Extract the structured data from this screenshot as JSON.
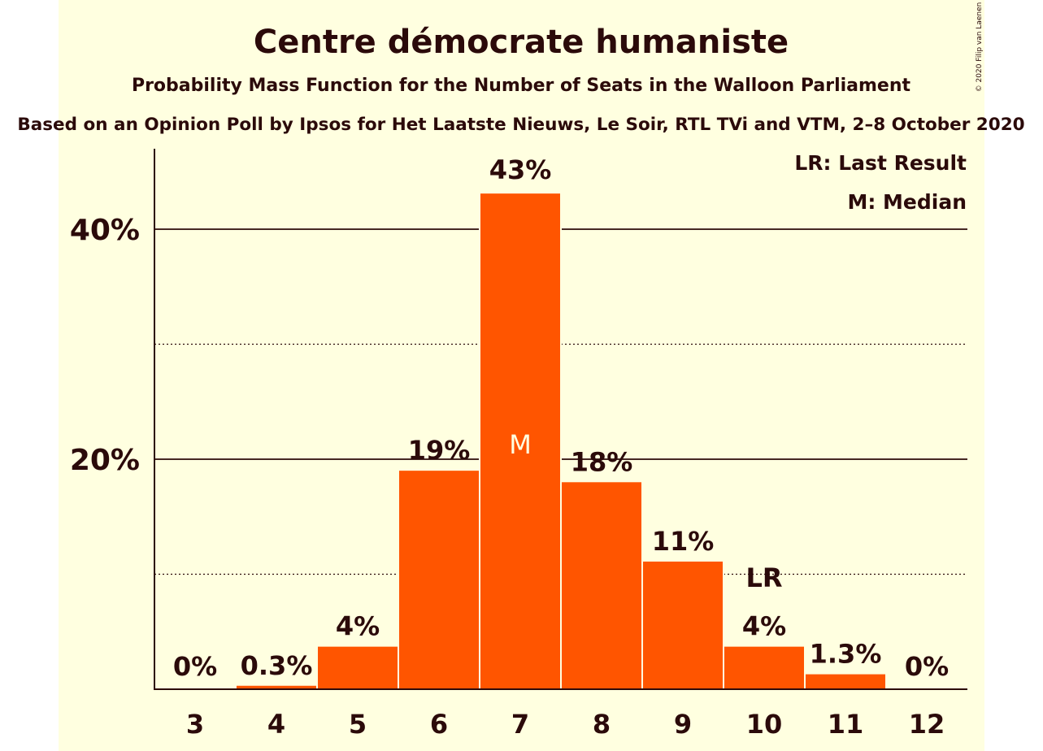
{
  "chart_data": {
    "type": "bar",
    "title": "Centre démocrate humaniste",
    "subtitle": "Probability Mass Function for the Number of Seats in the Walloon Parliament",
    "subtitle2": "Based on an Opinion Poll by Ipsos for Het Laatste Nieuws, Le Soir, RTL TVi and VTM, 2–8 October 2020",
    "copyright": "© 2020 Filip van Laenen",
    "categories": [
      "3",
      "4",
      "5",
      "6",
      "7",
      "8",
      "9",
      "10",
      "11",
      "12"
    ],
    "values": [
      0,
      0.3,
      3.7,
      19,
      43.1,
      18,
      11.1,
      3.7,
      1.3,
      0
    ],
    "value_labels": [
      "0%",
      "0.3%",
      "4%",
      "19%",
      "43%",
      "18%",
      "11%",
      "4%",
      "1.3%",
      "0%"
    ],
    "ylim": [
      0,
      47
    ],
    "yticks": [
      {
        "value": 20,
        "label": "20%"
      },
      {
        "value": 40,
        "label": "40%"
      }
    ],
    "minor_gridlines": [
      10,
      30
    ],
    "median_category": "7",
    "median_marker": "M",
    "last_result_category": "10",
    "last_result_marker": "LR",
    "legend": [
      "LR: Last Result",
      "M: Median"
    ],
    "legend_position": "top-right",
    "colors": {
      "bar": "#ff5500",
      "text": "#2b0a0a",
      "background": "#ffffe0",
      "median_text": "#ffffe0"
    }
  }
}
